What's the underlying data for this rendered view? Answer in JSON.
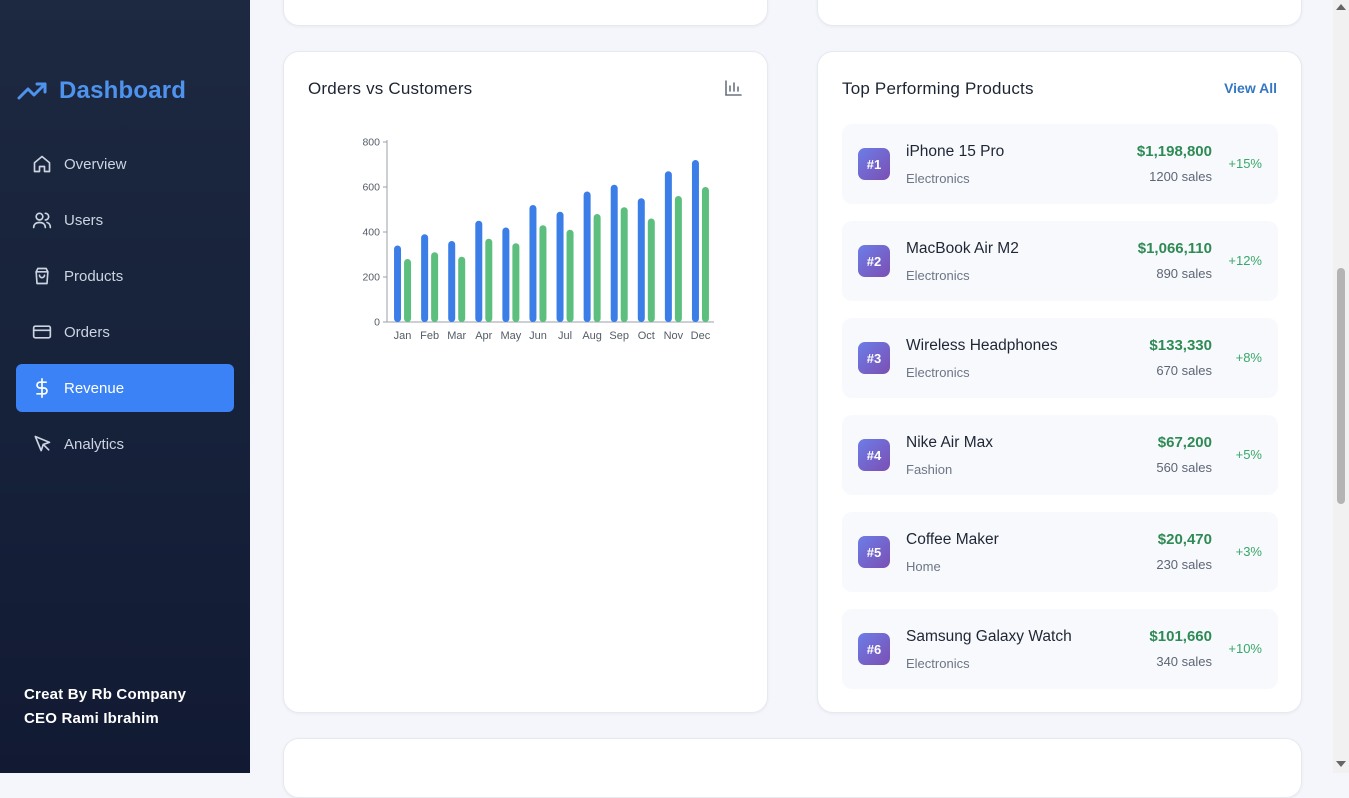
{
  "sidebar": {
    "brand": "Dashboard",
    "items": [
      {
        "label": "Overview",
        "icon": "home-icon"
      },
      {
        "label": "Users",
        "icon": "users-icon"
      },
      {
        "label": "Products",
        "icon": "shopping-bag-icon"
      },
      {
        "label": "Orders",
        "icon": "credit-card-icon"
      },
      {
        "label": "Revenue",
        "icon": "dollar-icon",
        "active": true
      },
      {
        "label": "Analytics",
        "icon": "cursor-icon"
      }
    ],
    "credits_line1": "Creat By Rb Company",
    "credits_line2": "CEO Rami Ibrahim"
  },
  "orders_chart": {
    "title": "Orders vs Customers"
  },
  "chart_data": {
    "type": "bar",
    "categories": [
      "Jan",
      "Feb",
      "Mar",
      "Apr",
      "May",
      "Jun",
      "Jul",
      "Aug",
      "Sep",
      "Oct",
      "Nov",
      "Dec"
    ],
    "series": [
      {
        "values": [
          340,
          390,
          360,
          450,
          420,
          520,
          490,
          580,
          610,
          550,
          670,
          720
        ],
        "color": "#3b7ee8"
      },
      {
        "values": [
          280,
          310,
          290,
          370,
          350,
          430,
          410,
          480,
          510,
          460,
          560,
          600
        ],
        "color": "#5cbf7e"
      }
    ],
    "ylim": [
      0,
      800
    ],
    "yticks": [
      0,
      200,
      400,
      600,
      800
    ],
    "grid": false,
    "xlabel": "",
    "ylabel": ""
  },
  "products": {
    "title": "Top Performing Products",
    "view_all": "View All",
    "items": [
      {
        "rank": "#1",
        "name": "iPhone 15 Pro",
        "category": "Electronics",
        "revenue": "$1,198,800",
        "sales": "1200 sales",
        "growth": "+15%"
      },
      {
        "rank": "#2",
        "name": "MacBook Air M2",
        "category": "Electronics",
        "revenue": "$1,066,110",
        "sales": "890 sales",
        "growth": "+12%"
      },
      {
        "rank": "#3",
        "name": "Wireless Headphones",
        "category": "Electronics",
        "revenue": "$133,330",
        "sales": "670 sales",
        "growth": "+8%"
      },
      {
        "rank": "#4",
        "name": "Nike Air Max",
        "category": "Fashion",
        "revenue": "$67,200",
        "sales": "560 sales",
        "growth": "+5%"
      },
      {
        "rank": "#5",
        "name": "Coffee Maker",
        "category": "Home",
        "revenue": "$20,470",
        "sales": "230 sales",
        "growth": "+3%"
      },
      {
        "rank": "#6",
        "name": "Samsung Galaxy Watch",
        "category": "Electronics",
        "revenue": "$101,660",
        "sales": "340 sales",
        "growth": "+10%"
      }
    ]
  },
  "colors": {
    "accent": "#3b82f6",
    "brand": "#4e93ee",
    "positive": "#2f8a55"
  }
}
